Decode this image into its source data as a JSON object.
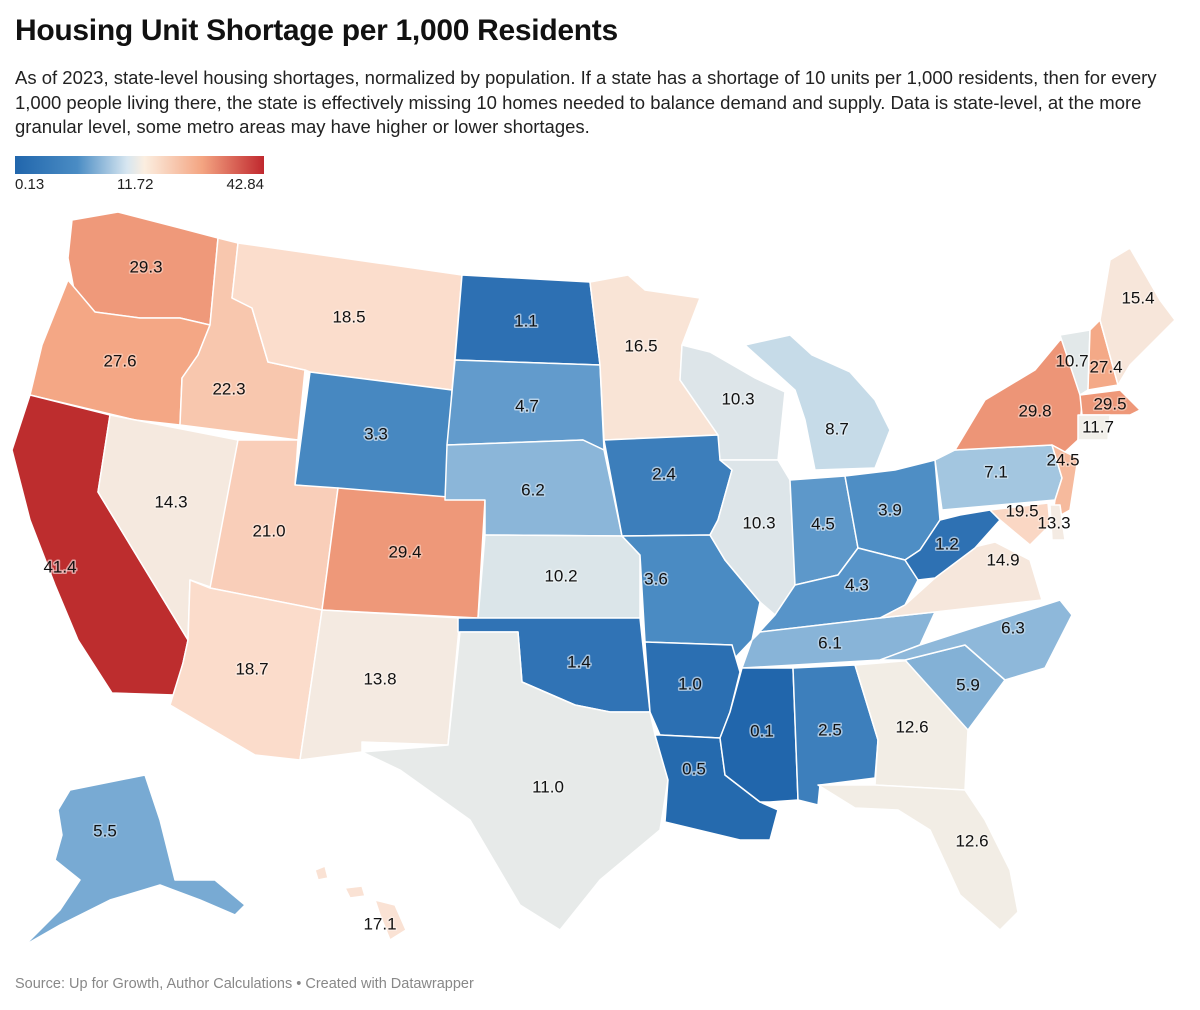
{
  "title": "Housing Unit Shortage per 1,000 Residents",
  "subtitle": "As of 2023, state-level housing shortages, normalized by population. If a state has a shortage of 10 units per 1,000 residents, then for every 1,000 people living there, the state is effectively missing 10 homes needed to balance demand and supply. Data is state-level, at the more granular level, some metro areas may have higher or lower shortages.",
  "legend": {
    "min": "0.13",
    "mid": "11.72",
    "max": "42.84"
  },
  "colors": {
    "low": "#2166ac",
    "mid": "#f7f4ee",
    "high": "#c0282e"
  },
  "source": "Source: Up for Growth, Author Calculations • Created with Datawrapper",
  "states": [
    {
      "id": "WA",
      "value": 29.3,
      "label": "29.3"
    },
    {
      "id": "OR",
      "value": 27.6,
      "label": "27.6"
    },
    {
      "id": "CA",
      "value": 41.4,
      "label": "41.4"
    },
    {
      "id": "ID",
      "value": 22.3,
      "label": "22.3"
    },
    {
      "id": "NV",
      "value": 14.3,
      "label": "14.3"
    },
    {
      "id": "MT",
      "value": 18.5,
      "label": "18.5"
    },
    {
      "id": "WY",
      "value": 3.3,
      "label": "3.3"
    },
    {
      "id": "UT",
      "value": 21.0,
      "label": "21.0"
    },
    {
      "id": "AZ",
      "value": 18.7,
      "label": "18.7"
    },
    {
      "id": "CO",
      "value": 29.4,
      "label": "29.4"
    },
    {
      "id": "NM",
      "value": 13.8,
      "label": "13.8"
    },
    {
      "id": "ND",
      "value": 1.1,
      "label": "1.1"
    },
    {
      "id": "SD",
      "value": 4.7,
      "label": "4.7"
    },
    {
      "id": "NE",
      "value": 6.2,
      "label": "6.2"
    },
    {
      "id": "KS",
      "value": 10.2,
      "label": "10.2"
    },
    {
      "id": "OK",
      "value": 1.4,
      "label": "1.4"
    },
    {
      "id": "TX",
      "value": 11.0,
      "label": "11.0"
    },
    {
      "id": "MN",
      "value": 16.5,
      "label": "16.5"
    },
    {
      "id": "IA",
      "value": 2.4,
      "label": "2.4"
    },
    {
      "id": "MO",
      "value": 3.6,
      "label": "3.6"
    },
    {
      "id": "AR",
      "value": 1.0,
      "label": "1.0"
    },
    {
      "id": "LA",
      "value": 0.5,
      "label": "0.5"
    },
    {
      "id": "WI",
      "value": 10.3,
      "label": "10.3"
    },
    {
      "id": "IL",
      "value": 10.3,
      "label": "10.3"
    },
    {
      "id": "MI",
      "value": 8.7,
      "label": "8.7"
    },
    {
      "id": "IN",
      "value": 4.5,
      "label": "4.5"
    },
    {
      "id": "OH",
      "value": 3.9,
      "label": "3.9"
    },
    {
      "id": "KY",
      "value": 4.3,
      "label": "4.3"
    },
    {
      "id": "TN",
      "value": 6.1,
      "label": "6.1"
    },
    {
      "id": "MS",
      "value": 0.1,
      "label": "0.1"
    },
    {
      "id": "AL",
      "value": 2.5,
      "label": "2.5"
    },
    {
      "id": "GA",
      "value": 12.6,
      "label": "12.6"
    },
    {
      "id": "FL",
      "value": 12.6,
      "label": "12.6"
    },
    {
      "id": "SC",
      "value": 5.9,
      "label": "5.9"
    },
    {
      "id": "NC",
      "value": 6.3,
      "label": "6.3"
    },
    {
      "id": "VA",
      "value": 14.9,
      "label": "14.9"
    },
    {
      "id": "WV",
      "value": 1.2,
      "label": "1.2"
    },
    {
      "id": "PA",
      "value": 7.1,
      "label": "7.1"
    },
    {
      "id": "NY",
      "value": 29.8,
      "label": "29.8"
    },
    {
      "id": "VT",
      "value": 10.7,
      "label": "10.7"
    },
    {
      "id": "NH",
      "value": 27.4,
      "label": "27.4"
    },
    {
      "id": "ME",
      "value": 15.4,
      "label": "15.4"
    },
    {
      "id": "MA",
      "value": 29.5,
      "label": "29.5"
    },
    {
      "id": "CT",
      "value": 11.7,
      "label": "11.7"
    },
    {
      "id": "NJ",
      "value": 24.5,
      "label": "24.5"
    },
    {
      "id": "MD",
      "value": 19.5,
      "label": "19.5"
    },
    {
      "id": "DE",
      "value": 13.3,
      "label": "13.3"
    },
    {
      "id": "AK",
      "value": 5.5,
      "label": "5.5"
    },
    {
      "id": "HI",
      "value": 17.1,
      "label": "17.1"
    }
  ]
}
